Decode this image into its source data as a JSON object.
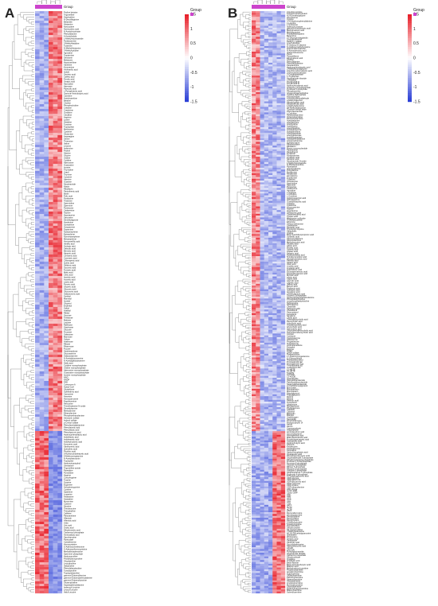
{
  "chart_data": [
    {
      "type": "heatmap",
      "panel": "A",
      "annotation_label": "Group",
      "n_columns": 6,
      "legend": {
        "title": "Group",
        "ticks": [
          "1.5",
          "1",
          "0.5",
          "0",
          "-0.5",
          "-1",
          "-1.5"
        ],
        "range": [
          -1.5,
          1.5
        ]
      },
      "colors": {
        "high": "#e8202a",
        "mid": "#ffffff",
        "low": "#2b3fd6",
        "group": "#cc44cc"
      },
      "rows": [
        "Proline betaine",
        "Trigonelline",
        "Stachydrine",
        "N-Deoxiflaginine",
        "Betanidin",
        "Histamine",
        "Norcocaine",
        "Nornicotinic acid",
        "N-Acetylnicotinate",
        "Phenylalanine",
        "4-Acetylindole",
        "1-Methylnicotinamide",
        "Pyridoxamine",
        "3-Methylhistidine",
        "Tyramine",
        "N-Methylhistamine",
        "3-Methylcytidine",
        "Agmatine",
        "Tryptamine",
        "Serotonin",
        "Melatonin",
        "Hypoxanthine",
        "Xanthine",
        "Kynurenine",
        "Anthranilic acid",
        "Indole",
        "Gentisic acid",
        "Caffeic acid",
        "Ferulic acid",
        "Sinapic acid",
        "Harmaline",
        "Harmane",
        "Pipecolic acid",
        "L-Pyroglutamic acid",
        "Gamma-Aminobutyric acid",
        "Carnitine",
        "Acetylcarnitine",
        "Betaine",
        "Choline",
        "Phosphocholine",
        "Creatine",
        "Creatinine",
        "Ornithine",
        "Citrulline",
        "Arginine",
        "Lysine",
        "Histidine",
        "Tyrosine",
        "Tryptophan",
        "Methionine",
        "Cysteine",
        "Glutamine",
        "Asparagine",
        "Serine",
        "Threonine",
        "Valine",
        "Leucine",
        "Isoleucine",
        "Proline",
        "Alanine",
        "Glycine",
        "Uridine",
        "Cytidine",
        "Adenosine",
        "Guanosine",
        "Inosine",
        "Thymidine",
        "Uracil",
        "Thymine",
        "Cytosine",
        "Adenine",
        "Guanine",
        "Nicotinamide",
        "Niacin",
        "Riboflavin",
        "Pantothenic acid",
        "Biotin",
        "Folic acid",
        "Pyridoxine",
        "Thiamine",
        "Spermidine",
        "Spermine",
        "Putrescine",
        "Cadaverine",
        "Taurine",
        "Hypotaurine",
        "Sarcosine",
        "Dimethylglycine",
        "Hordenine",
        "Synephrine",
        "Octopamine",
        "Dopamine",
        "Norepinephrine",
        "Epinephrine",
        "Normetanephrine",
        "Metanephrine",
        "Homovanillic acid",
        "Vanillic acid",
        "Syringic acid",
        "Salicylic acid",
        "Benzoic acid",
        "Hippuric acid",
        "Cinnamic acid",
        "Coumaric acid",
        "Chlorogenic acid",
        "Quinic acid",
        "Shikimic acid",
        "Succinic acid",
        "Fumaric acid",
        "Malic acid",
        "Citric acid",
        "Isocitric acid",
        "Aconitic acid",
        "Lactic acid",
        "Pyruvic acid",
        "Glyceric acid",
        "Gluconic acid",
        "Glucuronic acid",
        "Galacturonic acid",
        "Sorbitol",
        "Mannitol",
        "Inositol",
        "Glycerol",
        "Erythritol",
        "Xylitol",
        "Arabitol",
        "Ribitol",
        "Sucrose",
        "Trehalose",
        "Maltose",
        "Lactose",
        "Raffinose",
        "Stachyose",
        "Glucose",
        "Fructose",
        "Galactose",
        "Mannose",
        "Xylose",
        "Arabinose",
        "Ribose",
        "Rhamnose",
        "Fucose",
        "Sedoheptulose",
        "Glucosamine",
        "Galactosamine",
        "N-Acetylglucosamine",
        "N-Acetylgalactosamine",
        "Sialic acid",
        "Cytidine monophosphate",
        "Uridine monophosphate",
        "Adenosine monophosphate",
        "Guanosine monophosphate",
        "Inosine monophosphate",
        "NAD",
        "NADP",
        "FAD",
        "Coenzyme A",
        "Acetyl-CoA",
        "Glutathione",
        "Ophthalmic acid",
        "Carnosine",
        "Anserine",
        "Homocarnosine",
        "Ergothioneine",
        "Hercynine",
        "Trimethylamine N-oxide",
        "Dimethylamine",
        "Methylamine",
        "Ethanolamine",
        "Phosphoethanolamine",
        "Serotonin sulfate",
        "Indoxyl sulfate",
        "p-Cresol sulfate",
        "Phenylacetylglutamine",
        "Phenylacetic acid",
        "Phenyllactic acid",
        "Phenylpyruvic acid",
        "Hydroxyphenyllactic acid",
        "Indolelactic acid",
        "Indoleacetic acid",
        "Indolepropionic acid",
        "Kynurenic acid",
        "Xanthurenic acid",
        "Quinolinic acid",
        "Picolinic acid",
        "5-Hydroxyindoleacetic acid",
        "5-Methoxytryptamine",
        "N-Acetylserotonin",
        "Tryptophol",
        "Hydroxytryptophol",
        "Gentianine",
        "Trigonelline amide",
        "Piperidine",
        "Pyrrolidine",
        "Hygrine",
        "Cuscohygrine",
        "Tropine",
        "Scopine",
        "Ecgonine",
        "Anhydroecgonine",
        "Cytisine",
        "Sparteine",
        "Lupanine",
        "Anabasine",
        "Anatabine",
        "Myosmine",
        "Cotinine",
        "Nicotine",
        "Theobromine",
        "Theophylline",
        "Caffeine",
        "Paraxanthine",
        "Allantoin",
        "Allantoic acid",
        "Urea",
        "Uric acid",
        "Orotic acid",
        "Dihydroorotic acid",
        "Carbamoyl phosphate",
        "Aminoadipic acid",
        "Saccharopine",
        "Pipecolate",
        "Cystathionine",
        "Homocysteine",
        "S-Adenosylmethionine",
        "S-Adenosylhomocysteine",
        "Methylthioadenosine",
        "Spermine phosphate",
        "Hydroxyproline",
        "Prolylhydroxyproline",
        "Glycylproline",
        "Leucylproline",
        "Valylproline",
        "Phenylalanylproline",
        "Tyrosylproline",
        "Tryptophylproline",
        "gamma-Glutamylleucine",
        "gamma-Glutamylphenylalanine",
        "gamma-Glutamyltyrosine",
        "Glutamylvaline",
        "Aspartylphenylalanine",
        "Isoleucyl-Leucine",
        "Leucyl-Leucine",
        "Valyl-Leucine"
      ]
    },
    {
      "type": "heatmap",
      "panel": "B",
      "annotation_label": "Group",
      "n_columns": 8,
      "legend": {
        "title": "Group",
        "ticks": [
          "1.5",
          "1",
          "0.5",
          "0",
          "-0.5",
          "-1",
          "-1.5"
        ],
        "range": [
          -1.5,
          1.5
        ]
      },
      "colors": {
        "high": "#e8202a",
        "mid": "#ffffff",
        "low": "#2b3fd6",
        "group": "#cc44cc"
      },
      "rows": [
        "3-Hydroxyproline",
        "5-Hydroxymethyluracil",
        "N,N-Dimethylglycine",
        "Homoserine",
        "Cystine",
        "3,4-Dihydroxyphenylalanine",
        "L-Leucine",
        "L-Isoleucine",
        "Isoleucyl-Leucine",
        "gamma-Aminobutyric acid",
        "Methylmalonic acid",
        "Methylguanine",
        "Tetrahydrobiopterin",
        "Betonicine",
        "15-Deoxyprostaglandin",
        "Leucylisoleucine",
        "Diethyl L-malate",
        "Lysyl-Histidine",
        "N-Carboxy-D-alanine",
        "S-Carboxymethylcysteine",
        "beta-D-Glucosamine",
        "N-Aminobenzoic acid",
        "Isobenzofuranone",
        "Pterin",
        "Pterostilbene",
        "Ethylmalonic acid",
        "Choline",
        "Phenylalanine",
        "Phenylethylamine",
        "Paraxanthine",
        "Hydroxyphenylacetic acid",
        "2-Methylbutyrylglycine",
        "3-Hydroxyphenylacetic acid",
        "3-Aminoisobutanoate",
        "2-Oxoglutaramate",
        "L-Tryptophan",
        "Nicotinamide riboside",
        "L-Histidine",
        "PC(20:2/18:2)",
        "PC(18:3/18:2)",
        "Hydroxyisocaproic acid",
        "Thiamine monophosphate",
        "Pyridoxal 5-phosphate",
        "Phosphoserine",
        "Glycerophosphocholine",
        "Cytidine diphosphate",
        "4-Acetylindole",
        "4-Hydroxybenzaldehyde",
        "4-Methylcatechol",
        "Dihydrocaffeic acid",
        "Dihydroferulic acid",
        "1-Methyladenosine",
        "N6-Methyladenosine",
        "Tyrosine methyl ester",
        "Phenylacetamide",
        "L-Carnitine",
        "Hexanoylcarnitine",
        "Octanoylcarnitine",
        "Decanoylcarnitine",
        "Acetylarginine",
        "Acetylleucine",
        "Acetylvaline",
        "Acetyllysine",
        "Acetylhistidine",
        "Acetylglutamine",
        "Acetylornithine",
        "Acetylaspartate",
        "Acetylglutamate",
        "Acetyltryptophan",
        "Acetylphenylalanine",
        "Acetylmethionine",
        "Acetyltyrosine",
        "Ribothymidine",
        "Riboflavin",
        "Flavin mononucleotide",
        "Pantetheine",
        "Pantothenol",
        "Pyridoxal",
        "Pyridoxamine",
        "Pyridoxic acid",
        "Nicotinic acid",
        "Nicotinamide N-oxide",
        "1-Methylnicotinamide",
        "N-Methylpiperidine",
        "Piperideine",
        "Isopropylamine",
        "Propylamine",
        "Butylamine",
        "Amylamine",
        "Hexylamine",
        "Tryptamine",
        "Tyramine",
        "Octopamine",
        "Spermidine",
        "Spermine",
        "Putrescine",
        "Cadaverine",
        "Agmatine",
        "L-Arginine",
        "L-Citrulline",
        "L-Ornithine",
        "Argininosuccinic acid",
        "Homoarginine",
        "Guanidinoacetic acid",
        "Creatine",
        "Creatinine",
        "Glycocyamine",
        "Taurine",
        "Hypotaurine",
        "Sulfoacetic acid",
        "Cysteinesulfinic acid",
        "Cysteic acid",
        "Methionine sulfoxide",
        "S-Methylcysteine",
        "Ethionine",
        "Selenomethionine",
        "Lanthionine",
        "Djenkolic acid",
        "Tryptophyl-Glycine",
        "Dipeptides",
        "Uridine",
        "Beta-Guanidinopropionic acid",
        "Sulfanilic acid",
        "Glucuronolactone",
        "Gluconolactone",
        "Methylsuccinic acid",
        "Glutaric acid",
        "Adipic acid",
        "Pimelic acid",
        "Suberic acid",
        "Azelaic acid",
        "Sebacic acid",
        "Dodecanedioic acid",
        "Tetradecanedioic acid",
        "Hexadecanedioic acid",
        "Palmitic acid",
        "Stearic acid",
        "Oleic acid",
        "Linoleic acid",
        "Linolenic acid",
        "Arachidonic acid",
        "Eicosapentaenoic acid",
        "Docosahexaenoic acid",
        "Myristic acid",
        "Lauric acid",
        "Capric acid",
        "Caprylic acid",
        "Caproic acid",
        "Valeric acid",
        "Butyric acid",
        "Propionic acid",
        "Isobutyric acid",
        "Isovaleric acid",
        "2-Methylbutyric acid",
        "Glycerol 3-phosphate",
        "Glycerophosphoethanolamine",
        "Phosphatidylcholine",
        "Lysophosphatidylcholine",
        "Sphingosine",
        "Sphinganine",
        "Ceramide",
        "Sphingomyelin",
        "Cholesterol",
        "Desmosterol",
        "Lanosterol",
        "Squalene",
        "Cholic acid",
        "Chenodeoxycholic acid",
        "Deoxycholic acid",
        "Lithocholic acid",
        "Ursodeoxycholic acid",
        "Glycocholic acid",
        "Taurocholic acid",
        "Glycochenodeoxycholic acid",
        "Taurochenodeoxycholic acid",
        "Cortisol",
        "Cortisone",
        "Corticosterone",
        "Aldosterone",
        "Progesterone",
        "Testosterone",
        "Androstenedione",
        "Estradiol",
        "Estrone",
        "DHEA",
        "DHEA sulfate",
        "Pregnenolone",
        "17-Hydroxyprogesterone",
        "11-Deoxycortisol",
        "Tetrahydrocortisol",
        "Prostaglandin E2",
        "Prostaglandin F2a",
        "Thromboxane B2",
        "Leukotriene B4",
        "12-HETE",
        "15-HETE",
        "5-HETE",
        "9-HODE",
        "13-HODE",
        "Anandamide",
        "Oleoylethanolamide",
        "Palmitoylethanolamide",
        "Stearoylethanolamide",
        "2-Arachidonoylglycerol",
        "Monoolein",
        "Monopalmitin",
        "Monostearin",
        "Diacylglycerol",
        "Triacylglycerol",
        "Retinol",
        "Retinal",
        "Retinoic acid",
        "Tocopherol",
        "Ubiquinone",
        "Menaquinone",
        "Phylloquinone",
        "Calcidiol",
        "Calcitriol",
        "Biliverdin",
        "Bilirubin",
        "Urobilinogen",
        "Stercobilin",
        "Porphobilinogen",
        "Protoporphyrin IX",
        "Heme",
        "Hemin",
        "Coproporphyrin",
        "Uroporphyrin",
        "Aminolevulinic acid",
        "Succinylacetone",
        "Homogentisic acid",
        "Maleylacetoacetic acid",
        "Fumarylacetoacetic acid",
        "Acetoacetic acid",
        "Hydroxybutyric acid",
        "Acetone",
        "Ketoleucine",
        "Ketoisoleucine",
        "Ketovaline",
        "Alpha-Ketoglutaric acid",
        "Oxaloacetic acid",
        "Phosphoenolpyruvic acid",
        "Glyceraldehyde 3-phosphate",
        "Dihydroxyacetone phosphate",
        "Fructose 1,6-bisphosphate",
        "Fructose 6-phosphate",
        "Glucose 6-phosphate",
        "Ribose 5-phosphate",
        "Ribulose 5-phosphate",
        "Xylulose 5-phosphate",
        "Sedoheptulose 7-phosphate",
        "Erythrose 4-phosphate",
        "6-Phosphogluconic acid",
        "UDP-glucose",
        "UDP-galactose",
        "UDP-glucuronic acid",
        "GDP-mannose",
        "CDP-choline",
        "CDP-ethanolamine",
        "ADP-ribose",
        "Cyclic AMP",
        "Cyclic GMP",
        "ATP",
        "ADP",
        "GTP",
        "GDP",
        "UTP",
        "CTP",
        "dATP",
        "dGTP",
        "dCTP",
        "dTTP",
        "Deoxyadenosine",
        "Deoxyguanosine",
        "Deoxycytidine",
        "Deoxyuridine",
        "Deoxyinosine",
        "5-Methylcytosine",
        "5-Methylcytidine",
        "Pseudouridine",
        "Dihydrouridine",
        "N4-Acetylcytidine",
        "7-Methylguanosine",
        "N2,N2-Dimethylguanosine",
        "Queuosine",
        "Wybutosine",
        "Inosinic acid",
        "Xanthosine",
        "Xanthylic acid",
        "Succinyladenosine",
        "Adenylosuccinic acid",
        "AICAR",
        "SAICAR",
        "Formylglycinamide",
        "Glycinamide ribotide",
        "Carbamoyl aspartate",
        "Dihydroorotate",
        "Orotidine",
        "Orotidylic acid",
        "Beta-Alanine",
        "Beta-Aminoisobutyric acid",
        "Malonic acid",
        "Methylmalonyl carnitine",
        "Propionylcarnitine",
        "Isovalerylcarnitine",
        "Tiglylcarnitine",
        "Glutarylcarnitine",
        "Palmitoylcarnitine",
        "Stearoylcarnitine",
        "Oleoylcarnitine",
        "Linoleoylcarnitine",
        "Myristoylcarnitine",
        "Lauroylcarnitine",
        "Hydroxybutyrylcarnitine",
        "Malonylcarnitine",
        "Suberylcarnitine"
      ]
    }
  ]
}
